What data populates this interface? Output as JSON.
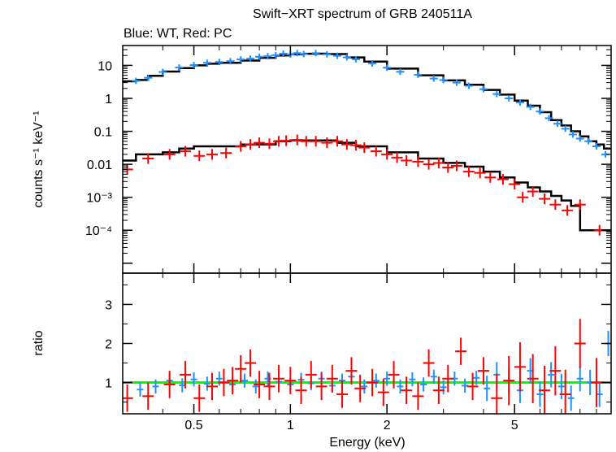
{
  "chart_data": {
    "type": "scatter",
    "title": "Swift−XRT spectrum of GRB 240511A",
    "subtitle": "Blue: WT, Red: PC",
    "xlabel": "Energy (keV)",
    "x_scale": "log",
    "xlim": [
      0.3,
      10
    ],
    "x_ticks": [
      {
        "value": 0.5,
        "label": "0.5"
      },
      {
        "value": 1,
        "label": "1"
      },
      {
        "value": 2,
        "label": "2"
      },
      {
        "value": 5,
        "label": "5"
      }
    ],
    "colors": {
      "wt": "#1e90ff",
      "pc": "#ff0000",
      "model": "#000000",
      "unity": "#00ff00"
    },
    "panels": {
      "spectrum": {
        "ylabel": "counts s⁻¹ keV⁻¹",
        "y_scale": "log",
        "ylim": [
          5e-06,
          40
        ],
        "y_ticks": [
          {
            "value": 10,
            "label": "10"
          },
          {
            "value": 1,
            "label": "1"
          },
          {
            "value": 0.1,
            "label": "0.1"
          },
          {
            "value": 0.01,
            "label": "0.01"
          },
          {
            "value": 0.001,
            "label": "10⁻³"
          },
          {
            "value": 0.0001,
            "label": "10⁻⁴"
          }
        ],
        "series": [
          {
            "name": "WT",
            "color": "#1e90ff",
            "model_color": "#000000",
            "model": [
              [
                0.3,
                3.3
              ],
              [
                0.33,
                3.6
              ],
              [
                0.36,
                4.8
              ],
              [
                0.4,
                6.5
              ],
              [
                0.45,
                8.3
              ],
              [
                0.5,
                10
              ],
              [
                0.55,
                11.2
              ],
              [
                0.6,
                12
              ],
              [
                0.7,
                14
              ],
              [
                0.8,
                17
              ],
              [
                0.9,
                20
              ],
              [
                1.0,
                21.5
              ],
              [
                1.1,
                22.5
              ],
              [
                1.2,
                22.7
              ],
              [
                1.3,
                22
              ],
              [
                1.5,
                17.5
              ],
              [
                1.7,
                13
              ],
              [
                2.0,
                8
              ],
              [
                2.5,
                5
              ],
              [
                3.0,
                3.5
              ],
              [
                3.5,
                2.6
              ],
              [
                4.0,
                1.8
              ],
              [
                4.5,
                1.3
              ],
              [
                5.0,
                0.85
              ],
              [
                5.5,
                0.6
              ],
              [
                6.0,
                0.38
              ],
              [
                6.5,
                0.22
              ],
              [
                7.0,
                0.15
              ],
              [
                7.5,
                0.1
              ],
              [
                8.0,
                0.07
              ],
              [
                8.5,
                0.05
              ],
              [
                9.0,
                0.04
              ],
              [
                9.5,
                0.03
              ],
              [
                10,
                0.03
              ]
            ],
            "points": [
              [
                0.33,
                3.4
              ],
              [
                0.36,
                4.2
              ],
              [
                0.4,
                6.3
              ],
              [
                0.45,
                8.6
              ],
              [
                0.5,
                10.2
              ],
              [
                0.55,
                12
              ],
              [
                0.6,
                12.7
              ],
              [
                0.65,
                13.4
              ],
              [
                0.7,
                15.2
              ],
              [
                0.75,
                16
              ],
              [
                0.8,
                18.3
              ],
              [
                0.85,
                19
              ],
              [
                0.9,
                20.4
              ],
              [
                0.95,
                22.7
              ],
              [
                1.0,
                21.5
              ],
              [
                1.05,
                23.6
              ],
              [
                1.1,
                22.1
              ],
              [
                1.2,
                23.5
              ],
              [
                1.3,
                21.6
              ],
              [
                1.4,
                19.6
              ],
              [
                1.5,
                17.5
              ],
              [
                1.6,
                15.3
              ],
              [
                1.8,
                11.4
              ],
              [
                2.0,
                8.5
              ],
              [
                2.2,
                6.4
              ],
              [
                2.5,
                5.2
              ],
              [
                2.8,
                4
              ],
              [
                3.0,
                3.6
              ],
              [
                3.3,
                3
              ],
              [
                3.6,
                2.4
              ],
              [
                4.0,
                1.9
              ],
              [
                4.4,
                1.35
              ],
              [
                4.8,
                1.0
              ],
              [
                5.2,
                0.75
              ],
              [
                5.6,
                0.55
              ],
              [
                6.0,
                0.4
              ],
              [
                6.4,
                0.25
              ],
              [
                6.8,
                0.17
              ],
              [
                7.2,
                0.12
              ],
              [
                7.6,
                0.08
              ],
              [
                8.0,
                0.06
              ],
              [
                8.5,
                0.05
              ],
              [
                9.0,
                0.035
              ],
              [
                9.6,
                0.02
              ]
            ]
          },
          {
            "name": "PC",
            "color": "#ff0000",
            "model_color": "#000000",
            "model": [
              [
                0.3,
                0.013
              ],
              [
                0.33,
                0.013
              ],
              [
                0.33,
                0.02
              ],
              [
                0.4,
                0.023
              ],
              [
                0.45,
                0.03
              ],
              [
                0.5,
                0.035
              ],
              [
                0.7,
                0.04
              ],
              [
                0.9,
                0.05
              ],
              [
                1.0,
                0.053
              ],
              [
                1.2,
                0.053
              ],
              [
                1.4,
                0.045
              ],
              [
                1.6,
                0.035
              ],
              [
                2.0,
                0.023
              ],
              [
                2.5,
                0.015
              ],
              [
                3.0,
                0.011
              ],
              [
                3.5,
                0.0085
              ],
              [
                4.0,
                0.006
              ],
              [
                4.5,
                0.004
              ],
              [
                5.0,
                0.0028
              ],
              [
                5.5,
                0.002
              ],
              [
                6.0,
                0.0015
              ],
              [
                6.5,
                0.0011
              ],
              [
                7.0,
                0.0008
              ],
              [
                7.5,
                0.00055
              ],
              [
                8.0,
                0.00045
              ],
              [
                8.0,
                0.0001
              ],
              [
                10,
                0.0001
              ]
            ],
            "points": [
              [
                0.31,
                0.007
              ],
              [
                0.36,
                0.015
              ],
              [
                0.42,
                0.02
              ],
              [
                0.47,
                0.025
              ],
              [
                0.52,
                0.018
              ],
              [
                0.57,
                0.02
              ],
              [
                0.63,
                0.022
              ],
              [
                0.7,
                0.035
              ],
              [
                0.75,
                0.04
              ],
              [
                0.8,
                0.045
              ],
              [
                0.86,
                0.042
              ],
              [
                0.92,
                0.05
              ],
              [
                0.97,
                0.052
              ],
              [
                1.05,
                0.055
              ],
              [
                1.12,
                0.05
              ],
              [
                1.2,
                0.05
              ],
              [
                1.3,
                0.045
              ],
              [
                1.4,
                0.05
              ],
              [
                1.5,
                0.04
              ],
              [
                1.6,
                0.038
              ],
              [
                1.7,
                0.032
              ],
              [
                1.85,
                0.025
              ],
              [
                2.0,
                0.02
              ],
              [
                2.15,
                0.016
              ],
              [
                2.3,
                0.013
              ],
              [
                2.5,
                0.012
              ],
              [
                2.7,
                0.01
              ],
              [
                2.9,
                0.011
              ],
              [
                3.1,
                0.008
              ],
              [
                3.3,
                0.009
              ],
              [
                3.6,
                0.006
              ],
              [
                3.9,
                0.0055
              ],
              [
                4.2,
                0.004
              ],
              [
                4.6,
                0.0035
              ],
              [
                5.0,
                0.0025
              ],
              [
                5.3,
                0.001
              ],
              [
                5.7,
                0.0015
              ],
              [
                6.2,
                0.0009
              ],
              [
                6.7,
                0.0006
              ],
              [
                7.3,
                0.0004
              ],
              [
                8.0,
                0.0006
              ],
              [
                9.2,
                0.0001
              ]
            ]
          }
        ]
      },
      "ratio": {
        "ylabel": "ratio",
        "y_scale": "linear",
        "ylim": [
          0.2,
          3.8
        ],
        "y_ticks": [
          {
            "value": 1,
            "label": "1"
          },
          {
            "value": 2,
            "label": "2"
          },
          {
            "value": 3,
            "label": "3"
          }
        ],
        "reference_line": 1,
        "series": [
          {
            "name": "WT",
            "color": "#1e90ff",
            "points": [
              [
                0.34,
                0.82
              ],
              [
                0.38,
                0.9
              ],
              [
                0.42,
                1.05
              ],
              [
                0.46,
                0.93
              ],
              [
                0.5,
                1.08
              ],
              [
                0.55,
                0.97
              ],
              [
                0.6,
                1.1
              ],
              [
                0.66,
                0.95
              ],
              [
                0.72,
                1.05
              ],
              [
                0.78,
                0.9
              ],
              [
                0.85,
                1.1
              ],
              [
                0.92,
                1.02
              ],
              [
                1.0,
                0.95
              ],
              [
                1.08,
                1.07
              ],
              [
                1.16,
                0.98
              ],
              [
                1.25,
                1.1
              ],
              [
                1.35,
                0.92
              ],
              [
                1.45,
                1.05
              ],
              [
                1.55,
                1.15
              ],
              [
                1.7,
                0.9
              ],
              [
                1.85,
                1.05
              ],
              [
                2.0,
                1.1
              ],
              [
                2.2,
                0.9
              ],
              [
                2.4,
                1.08
              ],
              [
                2.6,
                0.95
              ],
              [
                2.8,
                1.15
              ],
              [
                3.0,
                0.88
              ],
              [
                3.25,
                1.1
              ],
              [
                3.5,
                0.92
              ],
              [
                3.8,
                1.12
              ],
              [
                4.1,
                0.85
              ],
              [
                4.4,
                1.2
              ],
              [
                4.8,
                1.05
              ],
              [
                5.2,
                0.8
              ],
              [
                5.6,
                1.3
              ],
              [
                6.0,
                0.7
              ],
              [
                6.5,
                1.2
              ],
              [
                7.0,
                0.9
              ],
              [
                7.5,
                0.6
              ],
              [
                8.0,
                1.1
              ],
              [
                8.6,
                1.0
              ],
              [
                9.2,
                0.7
              ],
              [
                9.8,
                2.0
              ]
            ]
          },
          {
            "name": "PC",
            "color": "#ff0000",
            "points": [
              [
                0.31,
                0.6
              ],
              [
                0.36,
                0.65
              ],
              [
                0.42,
                0.95
              ],
              [
                0.47,
                1.2
              ],
              [
                0.52,
                0.6
              ],
              [
                0.57,
                0.9
              ],
              [
                0.62,
                1.0
              ],
              [
                0.66,
                1.05
              ],
              [
                0.7,
                1.35
              ],
              [
                0.75,
                1.5
              ],
              [
                0.8,
                0.95
              ],
              [
                0.86,
                0.9
              ],
              [
                0.92,
                1.1
              ],
              [
                1.0,
                1.05
              ],
              [
                1.08,
                0.8
              ],
              [
                1.16,
                1.2
              ],
              [
                1.25,
                0.9
              ],
              [
                1.35,
                1.1
              ],
              [
                1.45,
                0.7
              ],
              [
                1.55,
                1.3
              ],
              [
                1.65,
                0.85
              ],
              [
                1.8,
                1.0
              ],
              [
                1.95,
                0.75
              ],
              [
                2.1,
                1.2
              ],
              [
                2.3,
                0.8
              ],
              [
                2.5,
                0.65
              ],
              [
                2.7,
                1.5
              ],
              [
                2.9,
                0.8
              ],
              [
                3.1,
                1.1
              ],
              [
                3.4,
                1.8
              ],
              [
                3.7,
                0.9
              ],
              [
                4.0,
                1.3
              ],
              [
                4.4,
                0.6
              ],
              [
                4.8,
                1.05
              ],
              [
                5.2,
                1.4
              ],
              [
                5.7,
                1.1
              ],
              [
                6.2,
                0.8
              ],
              [
                6.7,
                1.3
              ],
              [
                7.2,
                0.7
              ],
              [
                8.0,
                2.0
              ],
              [
                9.0,
                1.0
              ]
            ]
          }
        ]
      }
    }
  }
}
